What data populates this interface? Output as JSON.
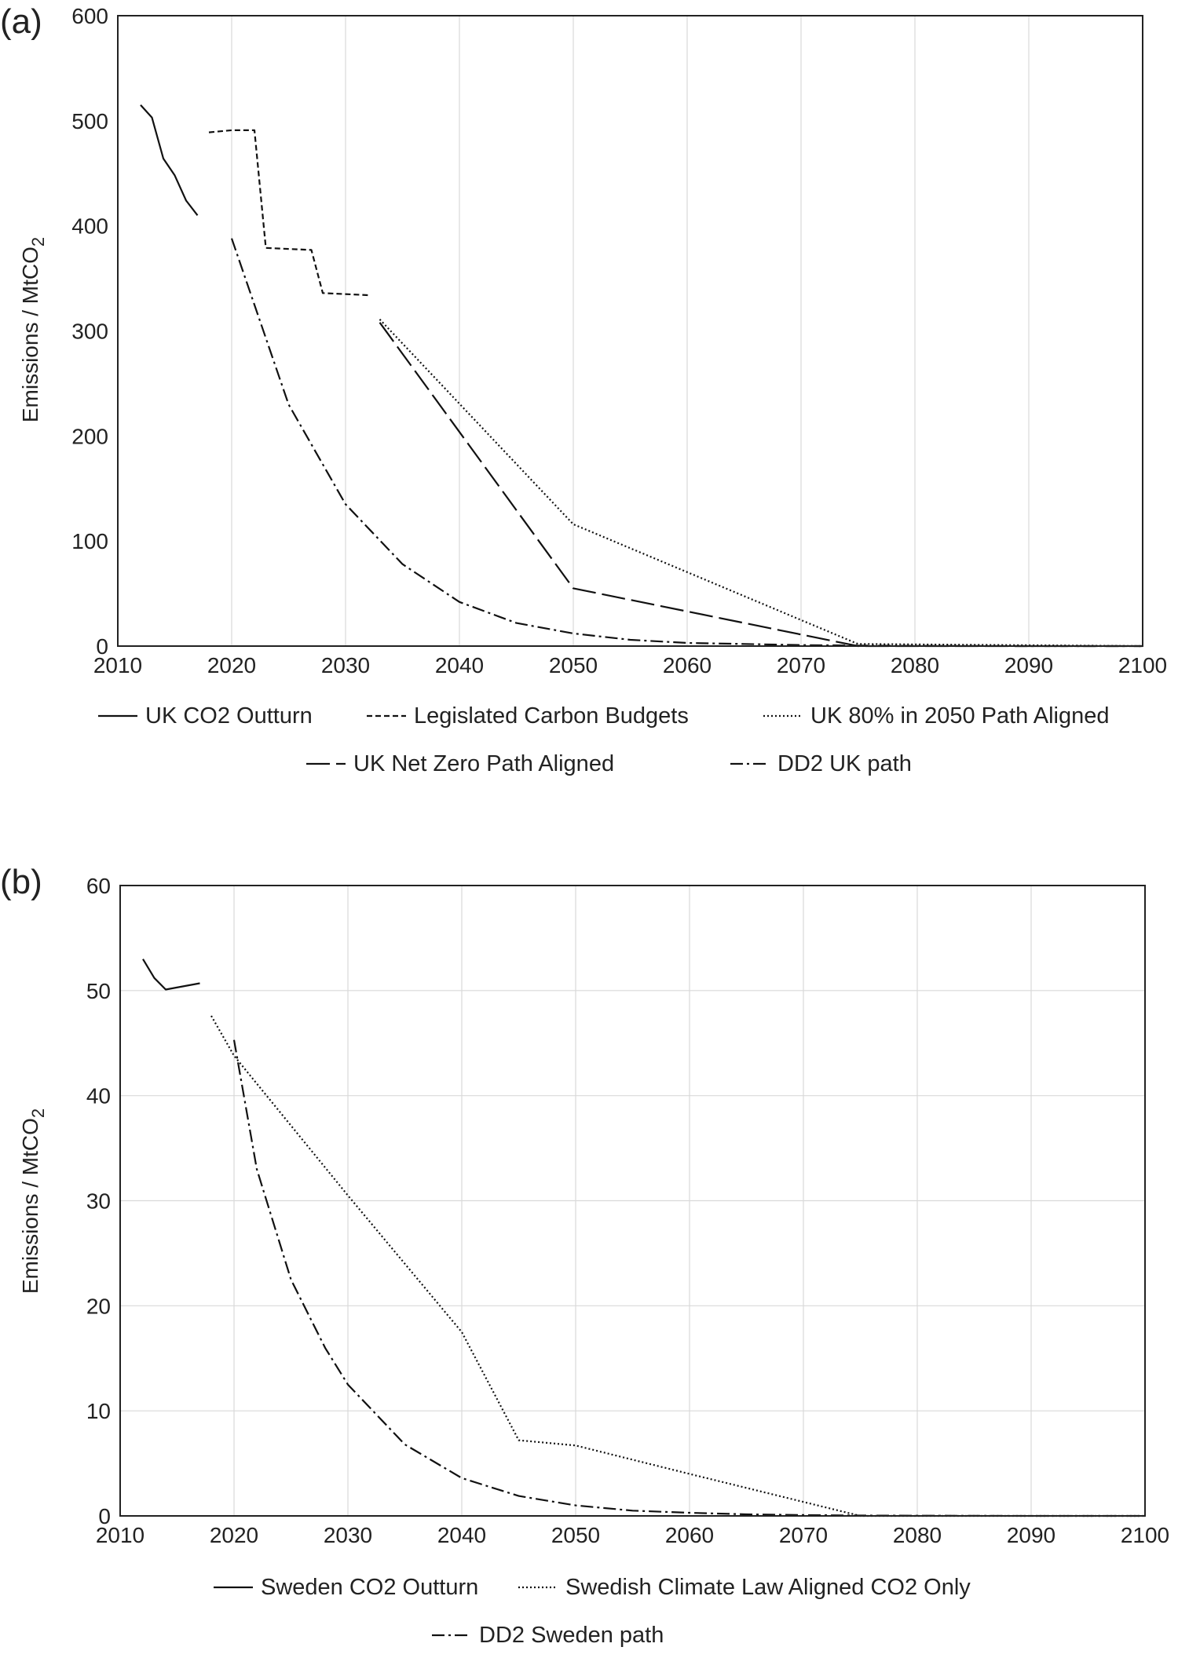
{
  "chart_data": [
    {
      "panel_label": "(a)",
      "type": "line",
      "ylabel_main": "Emissions / MtCO",
      "ylabel_sub": "2",
      "xlim": [
        2010,
        2100
      ],
      "ylim": [
        0,
        600
      ],
      "x_ticks": [
        2010,
        2020,
        2030,
        2040,
        2050,
        2060,
        2070,
        2080,
        2090,
        2100
      ],
      "y_ticks": [
        0,
        100,
        200,
        300,
        400,
        500,
        600
      ],
      "grid": "vertical",
      "legend_placement": "bottom",
      "series": [
        {
          "name": "UK CO2 Outturn",
          "style": "solid",
          "x": [
            2012,
            2013,
            2014,
            2015,
            2016,
            2017
          ],
          "y": [
            515,
            503,
            464,
            448,
            424,
            410
          ]
        },
        {
          "name": "Legislated Carbon Budgets",
          "style": "dashed",
          "x": [
            2018,
            2020,
            2022,
            2023,
            2027,
            2028,
            2032
          ],
          "y": [
            489,
            491,
            491,
            379,
            377,
            336,
            334
          ]
        },
        {
          "name": "UK 80% in 2050 Path Aligned",
          "style": "dotted",
          "x": [
            2033,
            2050,
            2075,
            2100
          ],
          "y": [
            311,
            116,
            2,
            0
          ]
        },
        {
          "name": "UK Net Zero Path Aligned",
          "style": "longdash",
          "x": [
            2033,
            2050,
            2075,
            2100
          ],
          "y": [
            308,
            55,
            0,
            0
          ]
        },
        {
          "name": "DD2 UK path",
          "style": "dashdot",
          "x": [
            2020,
            2025,
            2030,
            2035,
            2040,
            2045,
            2050,
            2055,
            2060,
            2065,
            2070,
            2075,
            2080,
            2090,
            2100
          ],
          "y": [
            388,
            230,
            135,
            78,
            42,
            22,
            12,
            6,
            3,
            2,
            1,
            0.5,
            0.2,
            0,
            0
          ]
        }
      ]
    },
    {
      "panel_label": "(b)",
      "type": "line",
      "ylabel_main": "Emissions / MtCO",
      "ylabel_sub": "2",
      "xlim": [
        2010,
        2100
      ],
      "ylim": [
        0,
        60
      ],
      "x_ticks": [
        2010,
        2020,
        2030,
        2040,
        2050,
        2060,
        2070,
        2080,
        2090,
        2100
      ],
      "y_ticks": [
        0,
        10,
        20,
        30,
        40,
        50,
        60
      ],
      "grid": "both",
      "legend_placement": "bottom",
      "series": [
        {
          "name": "Sweden CO2 Outturn",
          "style": "solid",
          "x": [
            2012,
            2013,
            2014,
            2017
          ],
          "y": [
            53.0,
            51.2,
            50.1,
            50.7
          ]
        },
        {
          "name": "Swedish Climate Law Aligned CO2 Only",
          "style": "dotted",
          "x": [
            2018,
            2020,
            2030,
            2040,
            2045,
            2050,
            2060,
            2075,
            2100
          ],
          "y": [
            47.6,
            43.8,
            30.5,
            17.5,
            7.2,
            6.7,
            4.0,
            0,
            0
          ]
        },
        {
          "name": "DD2 Sweden path",
          "style": "dashdot",
          "x": [
            2020,
            2022,
            2025,
            2028,
            2030,
            2035,
            2040,
            2045,
            2050,
            2055,
            2060,
            2065,
            2070,
            2075,
            2080,
            2090,
            2100
          ],
          "y": [
            45.3,
            33.0,
            22.5,
            16.0,
            12.5,
            6.8,
            3.6,
            1.9,
            1.0,
            0.5,
            0.3,
            0.15,
            0.08,
            0.04,
            0.02,
            0,
            0
          ]
        }
      ]
    }
  ]
}
